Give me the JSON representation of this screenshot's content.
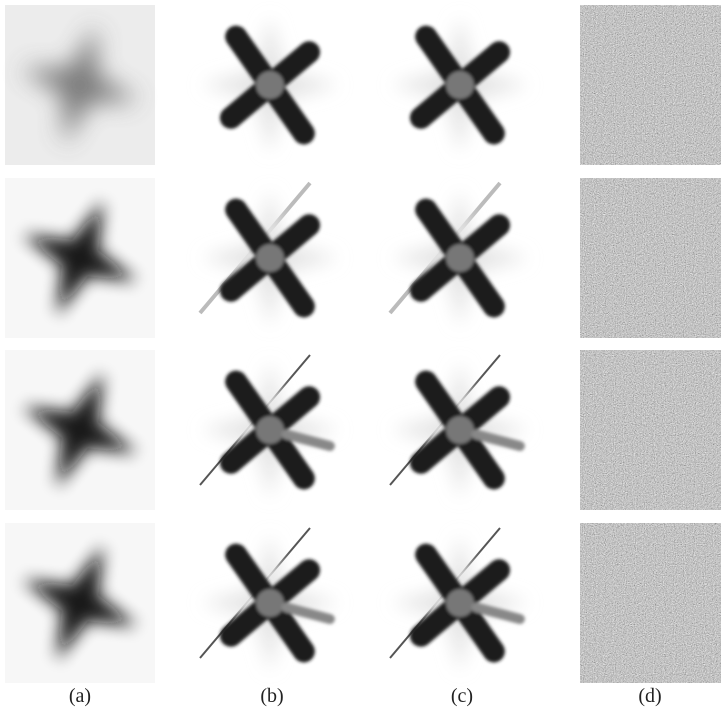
{
  "captions": [
    "(a)",
    "(b)",
    "(c)",
    "(d)"
  ]
}
